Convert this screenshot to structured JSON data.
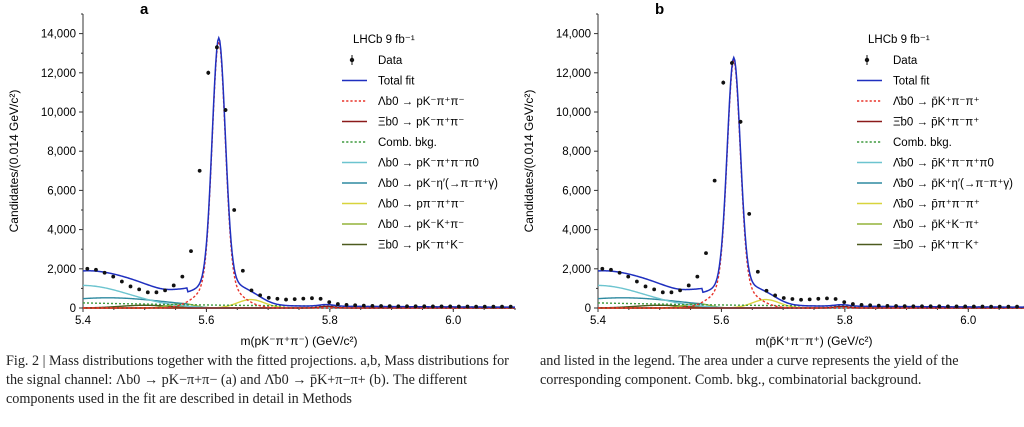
{
  "caption": {
    "left": "Fig. 2 | Mass distributions together with the fitted projections. a,b, Mass distributions for the signal channel: Λb0 → pK−π+π− (a) and Λ̄b0 → p̄K+π−π+ (b). The different components used in the fit are described in detail in Methods",
    "right": "and listed in the legend. The area under a curve represents the yield of the corresponding component. Comb. bkg., combinatorial background."
  },
  "colors": {
    "data": "#111111",
    "total_fit": "#1f2fbf",
    "signal": "#e8332a",
    "xi_b": "#8b1a1a",
    "comb": "#3f9a3f",
    "pi0": "#6cc4cf",
    "eta": "#2e8aa0",
    "ppipi": "#d8d43c",
    "pKK": "#93b33a",
    "xiKK": "#4d5a1f"
  },
  "chart_data": [
    {
      "panel_label": "a",
      "type": "line",
      "title": "",
      "experiment_label": "LHCb 9 fb⁻¹",
      "xlabel": "m(pK⁻π⁺π⁻) (GeV/c²)",
      "ylabel": "Candidates/(0.014 GeV/c²)",
      "xlim": [
        5.4,
        6.1
      ],
      "ylim": [
        0,
        15000
      ],
      "xticks": [
        "5.4",
        "5.6",
        "5.8",
        "6.0"
      ],
      "yticks": [
        "0",
        "2,000",
        "4,000",
        "6,000",
        "8,000",
        "10,000",
        "12,000",
        "14,000"
      ],
      "legend": [
        {
          "key": "data",
          "label": "Data",
          "style": "errorbar"
        },
        {
          "key": "total_fit",
          "label": "Total fit",
          "style": "solid"
        },
        {
          "key": "signal",
          "label": "Λb0 → pK⁻π⁺π⁻",
          "style": "dotted"
        },
        {
          "key": "xi_b",
          "label": "Ξb0 → pK⁻π⁺π⁻",
          "style": "solid"
        },
        {
          "key": "comb",
          "label": "Comb. bkg.",
          "style": "dotted"
        },
        {
          "key": "pi0",
          "label": "Λb0 → pK⁻π⁺π⁻π0",
          "style": "solid"
        },
        {
          "key": "eta",
          "label": "Λb0 → pK⁻η′(→π⁻π⁺γ)",
          "style": "solid"
        },
        {
          "key": "ppipi",
          "label": "Λb0 → pπ⁻π⁺π⁻",
          "style": "solid"
        },
        {
          "key": "pKK",
          "label": "Λb0 → pK⁻K⁺π⁻",
          "style": "solid"
        },
        {
          "key": "xiKK",
          "label": "Ξb0 → pK⁻π⁺K⁻",
          "style": "solid"
        }
      ],
      "data_points": {
        "x": [
          5.407,
          5.421,
          5.435,
          5.449,
          5.463,
          5.477,
          5.491,
          5.505,
          5.519,
          5.533,
          5.547,
          5.561,
          5.575,
          5.589,
          5.603,
          5.617,
          5.631,
          5.645,
          5.659,
          5.673,
          5.687,
          5.701,
          5.715,
          5.729,
          5.743,
          5.757,
          5.771,
          5.785,
          5.799,
          5.813,
          5.827,
          5.841,
          5.855,
          5.869,
          5.883,
          5.897,
          5.911,
          5.925,
          5.939,
          5.953,
          5.967,
          5.981,
          5.995,
          6.009,
          6.023,
          6.037,
          6.051,
          6.065,
          6.079,
          6.093
        ],
        "y": [
          2000,
          1950,
          1800,
          1600,
          1350,
          1100,
          950,
          800,
          800,
          900,
          1150,
          1600,
          2900,
          7000,
          12000,
          13300,
          10100,
          5000,
          1900,
          900,
          650,
          520,
          470,
          430,
          450,
          480,
          500,
          470,
          300,
          200,
          160,
          140,
          120,
          110,
          100,
          95,
          90,
          90,
          85,
          85,
          80,
          80,
          80,
          75,
          75,
          70,
          70,
          70,
          70,
          70
        ]
      },
      "peak_height": 13600
    },
    {
      "panel_label": "b",
      "type": "line",
      "title": "",
      "experiment_label": "LHCb 9 fb⁻¹",
      "xlabel": "m(p̄K⁺π⁻π⁺) (GeV/c²)",
      "ylabel": "Candidates/(0.014 GeV/c²)",
      "xlim": [
        5.4,
        6.1
      ],
      "ylim": [
        0,
        15000
      ],
      "xticks": [
        "5.4",
        "5.6",
        "5.8",
        "6.0"
      ],
      "yticks": [
        "0",
        "2,000",
        "4,000",
        "6,000",
        "8,000",
        "10,000",
        "12,000",
        "14,000"
      ],
      "legend": [
        {
          "key": "data",
          "label": "Data",
          "style": "errorbar"
        },
        {
          "key": "total_fit",
          "label": "Total fit",
          "style": "solid"
        },
        {
          "key": "signal",
          "label": "Λ̄b0 → p̄K⁺π⁻π⁺",
          "style": "dotted"
        },
        {
          "key": "xi_b",
          "label": "Ξ̄b0 → p̄K⁺π⁻π⁺",
          "style": "solid"
        },
        {
          "key": "comb",
          "label": "Comb. bkg.",
          "style": "dotted"
        },
        {
          "key": "pi0",
          "label": "Λ̄b0 → p̄K⁺π⁻π⁺π0",
          "style": "solid"
        },
        {
          "key": "eta",
          "label": "Λ̄b0 → p̄K⁺η′(→π⁻π⁺γ)",
          "style": "solid"
        },
        {
          "key": "ppipi",
          "label": "Λ̄b0 → p̄π⁺π⁻π⁺",
          "style": "solid"
        },
        {
          "key": "pKK",
          "label": "Λ̄b0 → p̄K⁺K⁻π⁺",
          "style": "solid"
        },
        {
          "key": "xiKK",
          "label": "Ξ̄b0 → p̄K⁺π⁻K⁺",
          "style": "solid"
        }
      ],
      "data_points": {
        "x": [
          5.407,
          5.421,
          5.435,
          5.449,
          5.463,
          5.477,
          5.491,
          5.505,
          5.519,
          5.533,
          5.547,
          5.561,
          5.575,
          5.589,
          5.603,
          5.617,
          5.631,
          5.645,
          5.659,
          5.673,
          5.687,
          5.701,
          5.715,
          5.729,
          5.743,
          5.757,
          5.771,
          5.785,
          5.799,
          5.813,
          5.827,
          5.841,
          5.855,
          5.869,
          5.883,
          5.897,
          5.911,
          5.925,
          5.939,
          5.953,
          5.967,
          5.981,
          5.995,
          6.009,
          6.023,
          6.037,
          6.051,
          6.065,
          6.079,
          6.093
        ],
        "y": [
          2000,
          1950,
          1800,
          1600,
          1350,
          1100,
          950,
          800,
          800,
          900,
          1150,
          1600,
          2800,
          6500,
          11500,
          12500,
          9500,
          4800,
          1850,
          880,
          640,
          510,
          460,
          420,
          440,
          470,
          490,
          460,
          300,
          200,
          160,
          140,
          120,
          110,
          100,
          95,
          90,
          90,
          85,
          85,
          80,
          80,
          80,
          75,
          75,
          70,
          70,
          70,
          70,
          70
        ]
      },
      "peak_height": 12600
    }
  ]
}
